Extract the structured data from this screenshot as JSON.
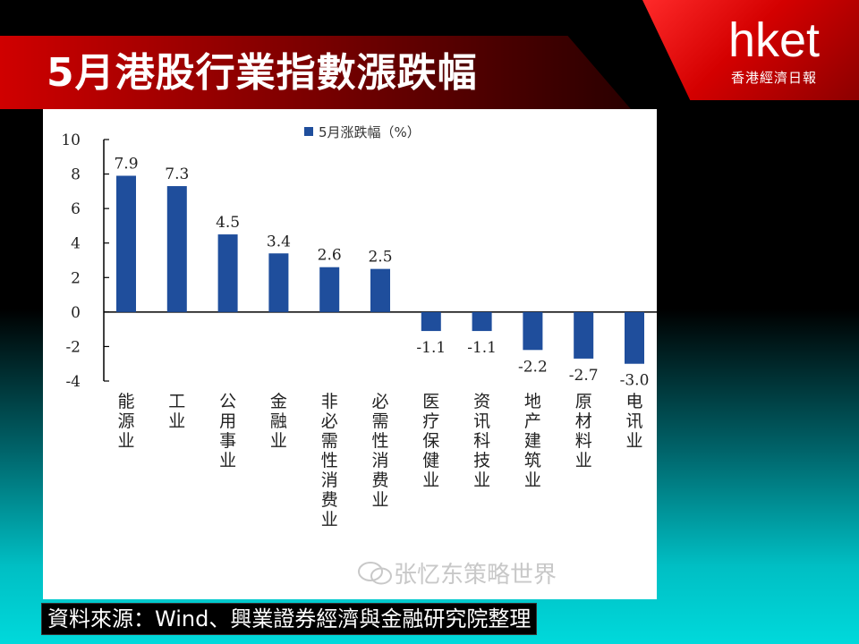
{
  "header": {
    "title": "5月港股行業指數漲跌幅",
    "brand": "hket",
    "brand_sub": "香港經濟日報"
  },
  "watermark": "张忆东策略世界",
  "source": "資料來源：Wind、興業證券經濟與金融研究院整理",
  "colors": {
    "bar": "#1f4e9c",
    "axis": "#000000",
    "header_red": "#c00000"
  },
  "chart_data": {
    "type": "bar",
    "legend_label": "5月涨跌幅（%）",
    "legend_position": "top-center",
    "categories": [
      "能源业",
      "工业",
      "公用事业",
      "金融业",
      "非必需性消费业",
      "必需性消费业",
      "医疗保健业",
      "资讯科技业",
      "地产建筑业",
      "原材料业",
      "电讯业"
    ],
    "values": [
      7.9,
      7.3,
      4.5,
      3.4,
      2.6,
      2.5,
      -1.1,
      -1.1,
      -2.2,
      -2.7,
      -3.0
    ],
    "data_labels": [
      "7.9",
      "7.3",
      "4.5",
      "3.4",
      "2.6",
      "2.5",
      "-1.1",
      "-1.1",
      "-2.2",
      "-2.7",
      "-3.0"
    ],
    "yticks": [
      "10",
      "8",
      "6",
      "4",
      "2",
      "0",
      "-2",
      "-4"
    ],
    "ylim": [
      -4,
      10
    ],
    "grid": false
  }
}
